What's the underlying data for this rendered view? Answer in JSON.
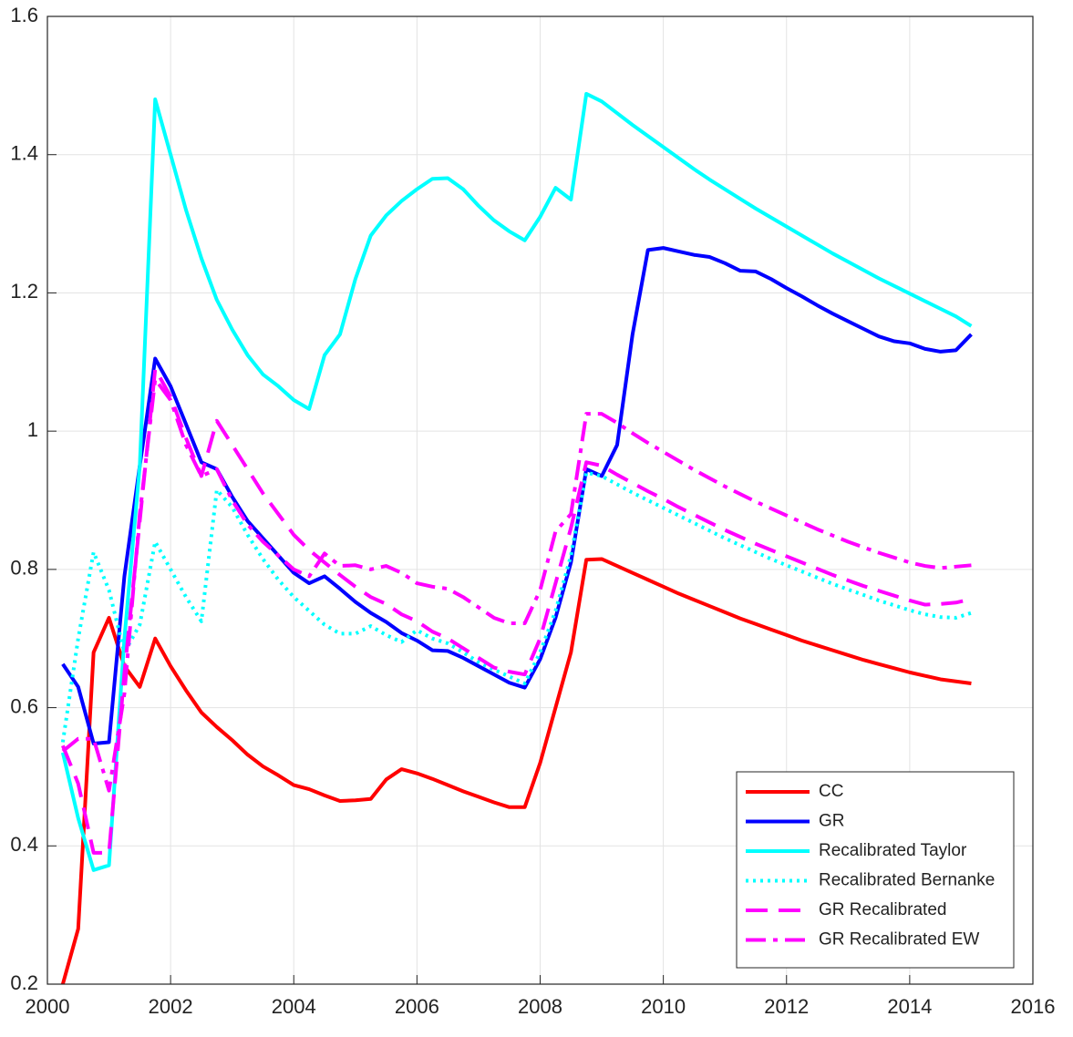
{
  "chart_data": {
    "type": "line",
    "x": [
      2000.25,
      2000.5,
      2000.75,
      2001,
      2001.25,
      2001.5,
      2001.75,
      2002,
      2002.25,
      2002.5,
      2002.75,
      2003,
      2003.25,
      2003.5,
      2003.75,
      2004,
      2004.25,
      2004.5,
      2004.75,
      2005,
      2005.25,
      2005.5,
      2005.75,
      2006,
      2006.25,
      2006.5,
      2006.75,
      2007,
      2007.25,
      2007.5,
      2007.75,
      2008,
      2008.25,
      2008.5,
      2008.75,
      2009,
      2009.25,
      2009.5,
      2009.75,
      2010,
      2010.25,
      2010.5,
      2010.75,
      2011,
      2011.25,
      2011.5,
      2011.75,
      2012,
      2012.25,
      2012.5,
      2012.75,
      2013,
      2013.25,
      2013.5,
      2013.75,
      2014,
      2014.25,
      2014.5,
      2014.75,
      2015
    ],
    "series": [
      {
        "name": "CC",
        "color": "#ff0000",
        "style": "solid",
        "values": [
          0.2,
          0.28,
          0.68,
          0.73,
          0.66,
          0.63,
          0.7,
          0.66,
          0.625,
          0.593,
          0.572,
          0.553,
          0.532,
          0.515,
          0.502,
          0.488,
          0.482,
          0.473,
          0.465,
          0.466,
          0.468,
          0.496,
          0.511,
          0.505,
          0.497,
          0.488,
          0.479,
          0.471,
          0.463,
          0.456,
          0.456,
          0.52,
          0.6,
          0.68,
          0.814,
          0.815,
          0.805,
          0.795,
          0.785,
          0.775,
          0.765,
          0.756,
          0.747,
          0.738,
          0.729,
          0.721,
          0.713,
          0.705,
          0.697,
          0.69,
          0.683,
          0.676,
          0.669,
          0.663,
          0.657,
          0.651,
          0.646,
          0.641,
          0.638,
          0.635
        ]
      },
      {
        "name": "GR",
        "color": "#0000ff",
        "style": "solid",
        "values": [
          0.663,
          0.63,
          0.548,
          0.55,
          0.79,
          0.95,
          1.105,
          1.065,
          1.01,
          0.955,
          0.945,
          0.905,
          0.87,
          0.845,
          0.82,
          0.795,
          0.78,
          0.79,
          0.772,
          0.753,
          0.737,
          0.724,
          0.708,
          0.697,
          0.683,
          0.682,
          0.672,
          0.66,
          0.648,
          0.636,
          0.629,
          0.67,
          0.73,
          0.81,
          0.945,
          0.935,
          0.98,
          1.14,
          1.262,
          1.265,
          1.26,
          1.255,
          1.252,
          1.243,
          1.232,
          1.231,
          1.22,
          1.207,
          1.195,
          1.182,
          1.17,
          1.159,
          1.148,
          1.137,
          1.13,
          1.127,
          1.119,
          1.115,
          1.117,
          1.14
        ]
      },
      {
        "name": "Recalibrated Taylor",
        "color": "#00ffff",
        "style": "solid",
        "values": [
          0.535,
          0.44,
          0.365,
          0.372,
          0.7,
          0.95,
          1.48,
          1.4,
          1.32,
          1.25,
          1.19,
          1.147,
          1.11,
          1.082,
          1.065,
          1.045,
          1.032,
          1.11,
          1.14,
          1.22,
          1.283,
          1.312,
          1.333,
          1.35,
          1.365,
          1.366,
          1.35,
          1.326,
          1.305,
          1.289,
          1.276,
          1.31,
          1.352,
          1.335,
          1.488,
          1.477,
          1.46,
          1.443,
          1.427,
          1.411,
          1.395,
          1.379,
          1.364,
          1.35,
          1.336,
          1.322,
          1.309,
          1.296,
          1.283,
          1.27,
          1.257,
          1.245,
          1.233,
          1.221,
          1.21,
          1.199,
          1.188,
          1.177,
          1.166,
          1.152
        ]
      },
      {
        "name": "Recalibrated Bernanke",
        "color": "#00ffff",
        "style": "dotted",
        "values": [
          0.55,
          0.7,
          0.825,
          0.77,
          0.68,
          0.72,
          0.84,
          0.8,
          0.76,
          0.725,
          0.915,
          0.89,
          0.85,
          0.815,
          0.785,
          0.76,
          0.74,
          0.72,
          0.707,
          0.707,
          0.718,
          0.705,
          0.695,
          0.712,
          0.7,
          0.693,
          0.68,
          0.666,
          0.655,
          0.645,
          0.635,
          0.68,
          0.74,
          0.82,
          0.94,
          0.935,
          0.923,
          0.911,
          0.9,
          0.889,
          0.878,
          0.867,
          0.856,
          0.845,
          0.835,
          0.825,
          0.815,
          0.806,
          0.797,
          0.788,
          0.779,
          0.771,
          0.763,
          0.755,
          0.748,
          0.741,
          0.735,
          0.731,
          0.73,
          0.737
        ]
      },
      {
        "name": "GR Recalibrated",
        "color": "#ff00ff",
        "style": "dashed",
        "values": [
          0.545,
          0.49,
          0.39,
          0.39,
          0.65,
          0.87,
          1.09,
          1.05,
          0.99,
          0.935,
          1.015,
          0.98,
          0.945,
          0.91,
          0.88,
          0.85,
          0.828,
          0.81,
          0.792,
          0.775,
          0.76,
          0.75,
          0.735,
          0.725,
          0.71,
          0.7,
          0.686,
          0.672,
          0.658,
          0.652,
          0.648,
          0.7,
          0.78,
          0.86,
          0.955,
          0.95,
          0.937,
          0.925,
          0.913,
          0.902,
          0.89,
          0.879,
          0.868,
          0.857,
          0.847,
          0.837,
          0.828,
          0.819,
          0.81,
          0.801,
          0.792,
          0.784,
          0.776,
          0.769,
          0.762,
          0.755,
          0.749,
          0.75,
          0.752,
          0.757
        ]
      },
      {
        "name": "GR Recalibrated EW",
        "color": "#ff00ff",
        "style": "dashdot",
        "values": [
          0.537,
          0.555,
          0.555,
          0.48,
          0.62,
          0.88,
          1.075,
          1.045,
          0.98,
          0.935,
          0.945,
          0.9,
          0.865,
          0.84,
          0.82,
          0.8,
          0.79,
          0.823,
          0.805,
          0.806,
          0.8,
          0.805,
          0.795,
          0.78,
          0.775,
          0.772,
          0.76,
          0.745,
          0.73,
          0.722,
          0.722,
          0.77,
          0.855,
          0.88,
          1.025,
          1.025,
          1.012,
          0.997,
          0.983,
          0.97,
          0.957,
          0.944,
          0.932,
          0.92,
          0.909,
          0.898,
          0.888,
          0.878,
          0.868,
          0.858,
          0.849,
          0.84,
          0.832,
          0.824,
          0.817,
          0.81,
          0.805,
          0.802,
          0.804,
          0.806
        ]
      }
    ],
    "xlim": [
      2000,
      2016
    ],
    "xticks": [
      2000,
      2002,
      2004,
      2006,
      2008,
      2010,
      2012,
      2014,
      2016
    ],
    "ylim": [
      0.2,
      1.6
    ],
    "yticks": [
      0.2,
      0.4,
      0.6,
      0.8,
      1,
      1.2,
      1.4,
      1.6
    ],
    "grid": true,
    "legend": "lower right"
  }
}
